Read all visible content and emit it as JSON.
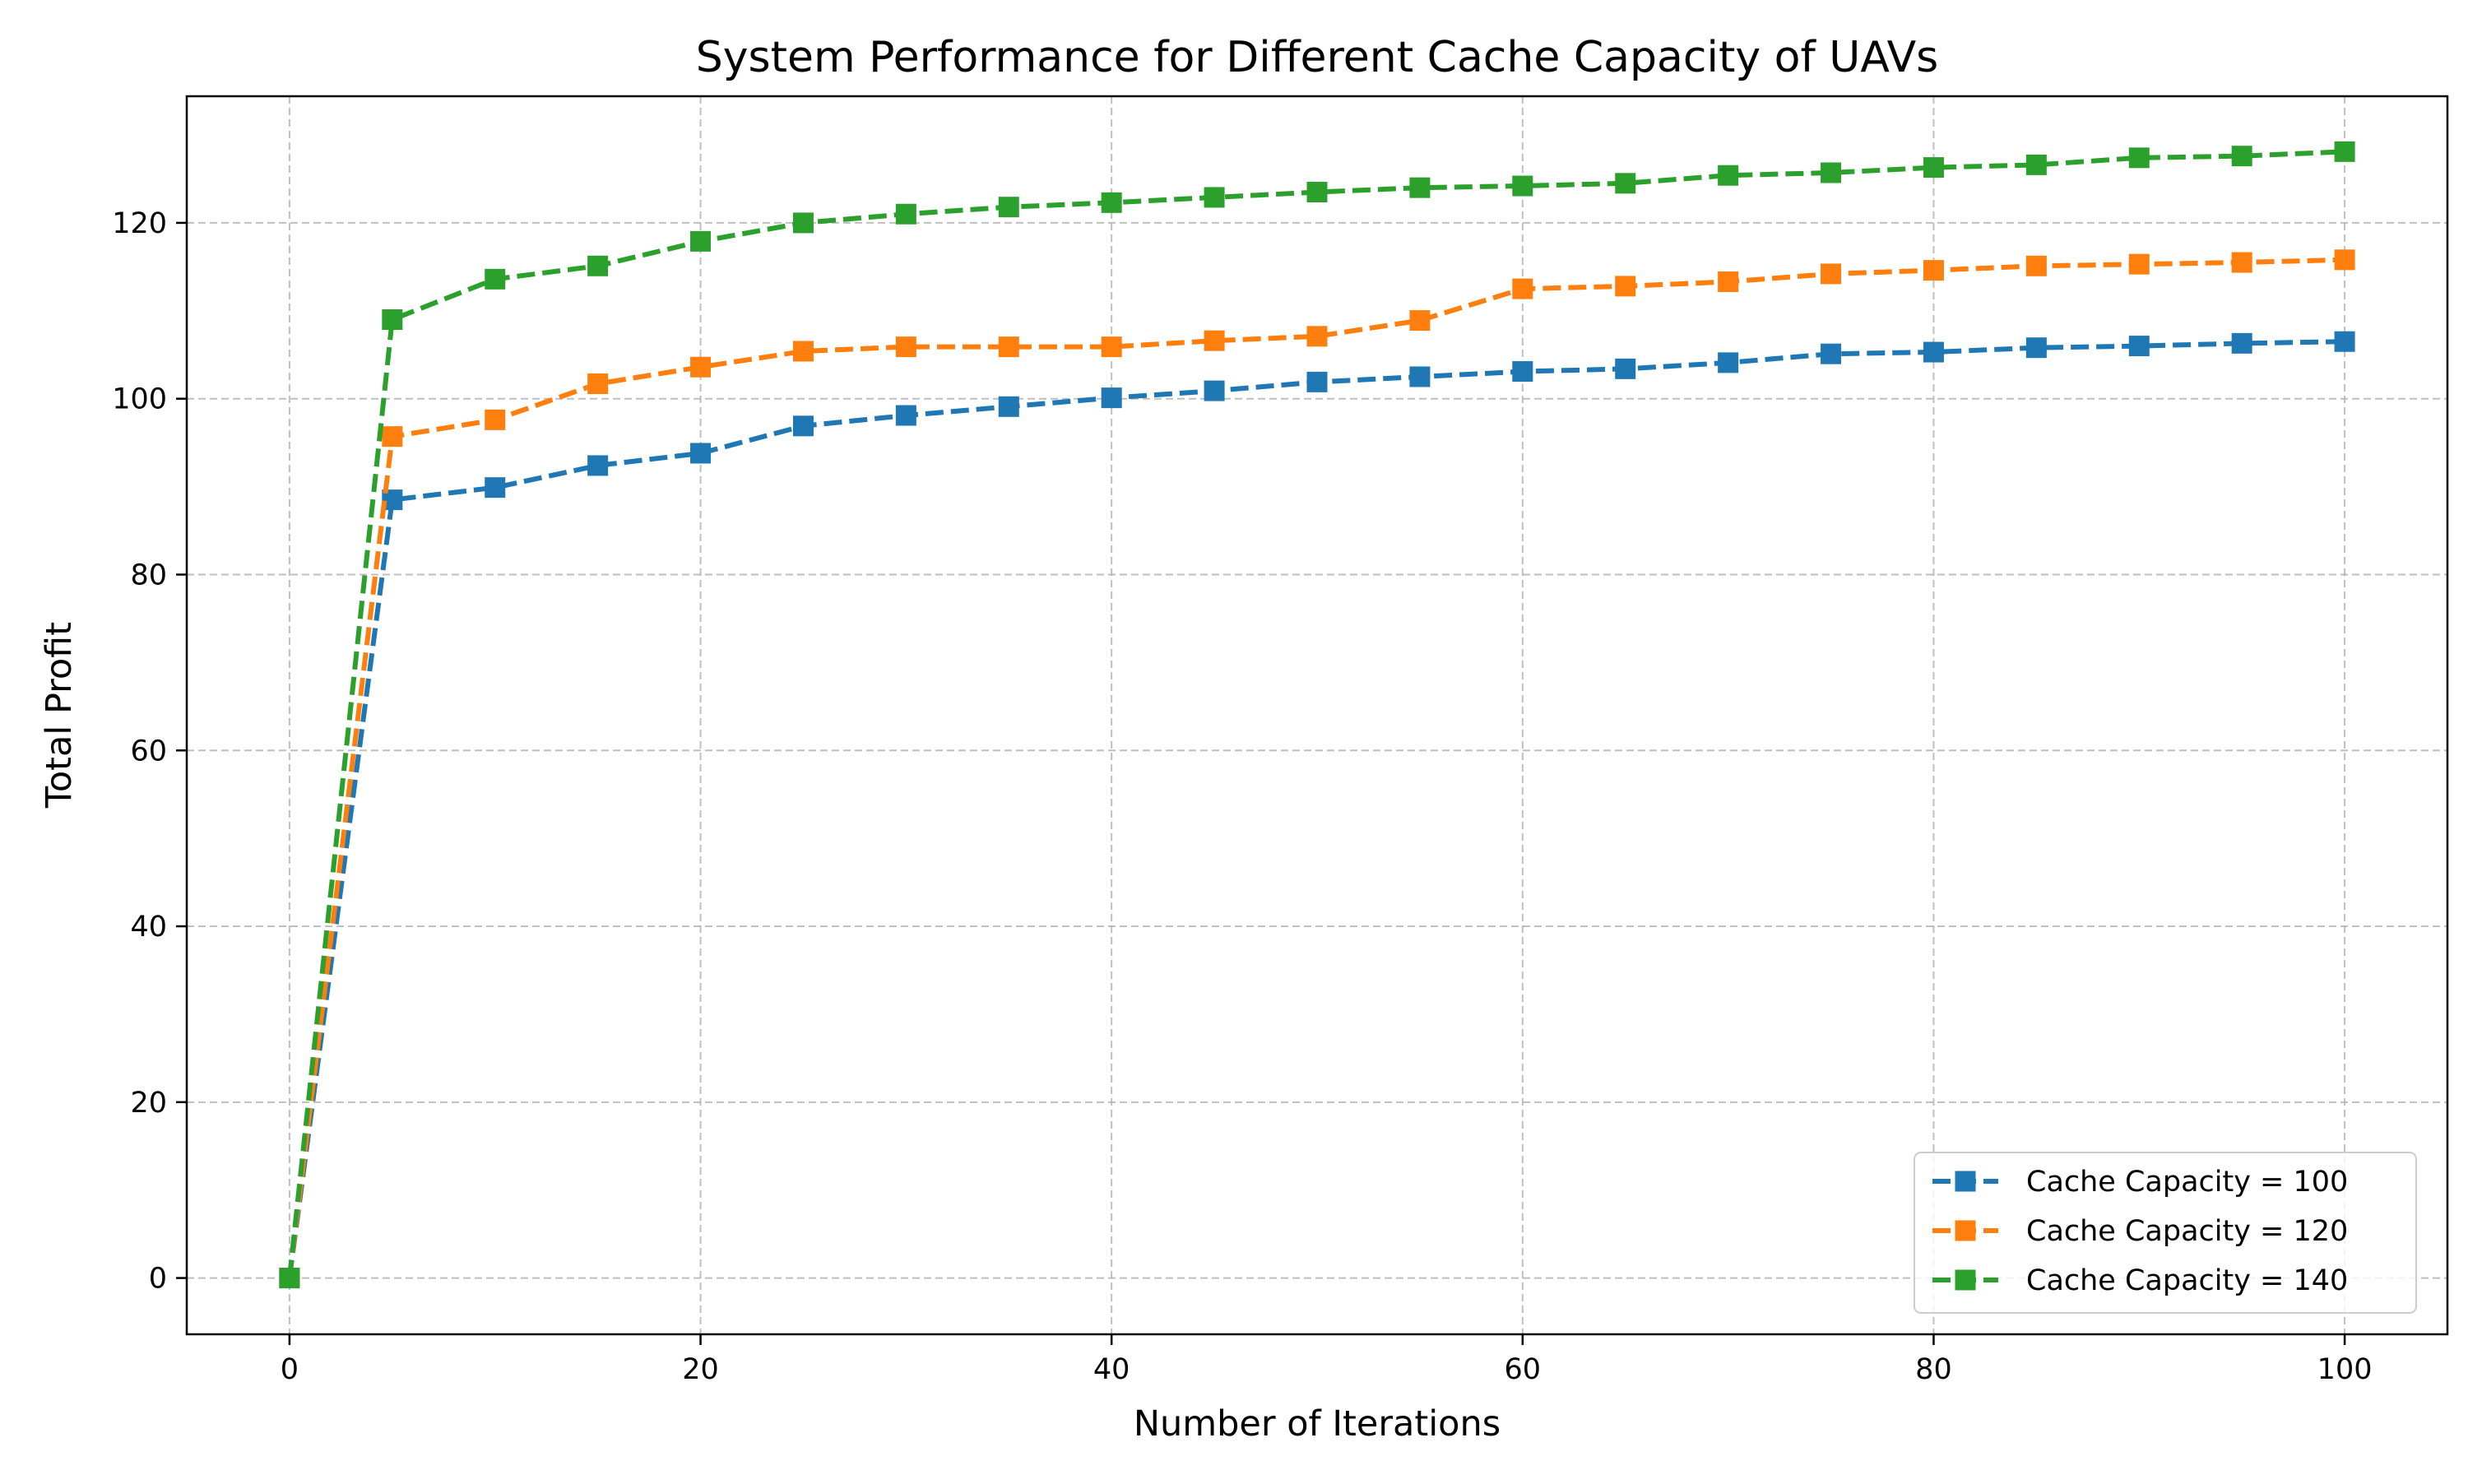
{
  "chart_data": {
    "type": "line",
    "title": "System Performance for Different Cache Capacity of UAVs",
    "xlabel": "Number of Iterations",
    "ylabel": "Total Profit",
    "xlim": [
      -5,
      105
    ],
    "ylim": [
      -6.4,
      134.4
    ],
    "x_ticks": [
      0,
      20,
      40,
      60,
      80,
      100
    ],
    "y_ticks": [
      0,
      20,
      40,
      60,
      80,
      100,
      120
    ],
    "grid": true,
    "legend_position": "lower right",
    "x": [
      0,
      5,
      10,
      15,
      20,
      25,
      30,
      35,
      40,
      45,
      50,
      55,
      60,
      65,
      70,
      75,
      80,
      85,
      90,
      95,
      100
    ],
    "series": [
      {
        "name": "Cache Capacity = 100",
        "color": "#1f77b4",
        "line_style": "dashed",
        "marker": "square",
        "values": [
          0,
          88.5,
          89.9,
          92.4,
          93.8,
          96.9,
          98.1,
          99.1,
          100.1,
          100.9,
          101.9,
          102.5,
          103.1,
          103.4,
          104.1,
          105.1,
          105.3,
          105.8,
          106.0,
          106.3,
          106.5
        ]
      },
      {
        "name": "Cache Capacity = 120",
        "color": "#ff7f0e",
        "line_style": "dashed",
        "marker": "square",
        "values": [
          0,
          95.7,
          97.6,
          101.7,
          103.6,
          105.4,
          105.9,
          105.9,
          105.9,
          106.6,
          107.1,
          108.9,
          112.5,
          112.8,
          113.3,
          114.2,
          114.6,
          115.1,
          115.3,
          115.5,
          115.8
        ]
      },
      {
        "name": "Cache Capacity = 140",
        "color": "#2ca02c",
        "line_style": "dashed",
        "marker": "square",
        "values": [
          0,
          109.0,
          113.6,
          115.1,
          117.9,
          120.0,
          121.0,
          121.8,
          122.3,
          122.9,
          123.5,
          124.0,
          124.2,
          124.5,
          125.4,
          125.7,
          126.3,
          126.6,
          127.4,
          127.6,
          128.1
        ]
      }
    ]
  }
}
